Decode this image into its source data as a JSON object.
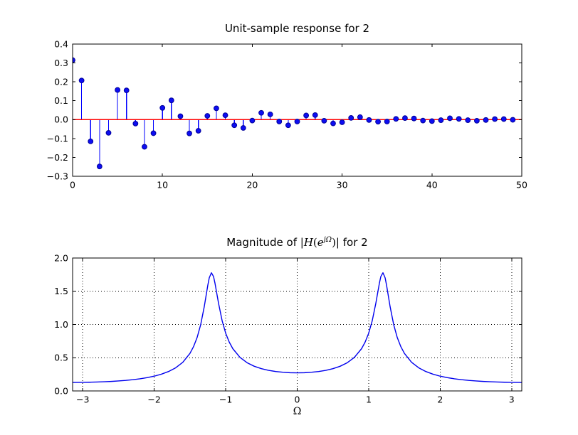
{
  "figure": {
    "background": "#ffffff",
    "text_color": "#000000",
    "axis_color": "#000000"
  },
  "chart_data": [
    {
      "id": "unit-sample-response",
      "type": "stem",
      "title": "Unit-sample response for 2",
      "xlabel": "",
      "ylabel": "",
      "xlim": [
        0,
        50
      ],
      "ylim": [
        -0.3,
        0.4
      ],
      "grid": false,
      "x_tick_values": [
        0,
        10,
        20,
        30,
        40,
        50
      ],
      "x_tick_labels": [
        "0",
        "10",
        "20",
        "30",
        "40",
        "50"
      ],
      "y_tick_values": [
        0.4,
        0.3,
        0.2,
        0.1,
        0.0,
        -0.1,
        -0.2,
        -0.3
      ],
      "y_tick_labels": [
        "0.4",
        "0.3",
        "0.2",
        "0.1",
        "0.0",
        "−0.1",
        "−0.2",
        "−0.3"
      ],
      "baseline_y": 0,
      "baseline_color": "#ff0000",
      "stem_color": "#0000ff",
      "marker_face": "#0d0df2",
      "marker_edge": "#000099",
      "x_is_index": true,
      "values": [
        0.315,
        0.207,
        -0.115,
        -0.248,
        -0.07,
        0.157,
        0.155,
        -0.021,
        -0.144,
        -0.072,
        0.062,
        0.102,
        0.018,
        -0.073,
        -0.059,
        0.02,
        0.06,
        0.023,
        -0.03,
        -0.044,
        -0.005,
        0.036,
        0.028,
        -0.01,
        -0.03,
        -0.01,
        0.022,
        0.024,
        -0.006,
        -0.02,
        -0.014,
        0.009,
        0.013,
        -0.002,
        -0.011,
        -0.01,
        0.004,
        0.008,
        0.006,
        -0.005,
        -0.008,
        -0.003,
        0.007,
        0.004,
        -0.003,
        -0.006,
        -0.002,
        0.003,
        0.003,
        -0.001
      ]
    },
    {
      "id": "magnitude-response",
      "type": "line",
      "title": "Magnitude of |H(e^jΩ)| for 2",
      "title_parts": [
        {
          "text": "Magnitude of ",
          "style": "sans"
        },
        {
          "text": "|",
          "style": "serif"
        },
        {
          "text": "H",
          "style": "serif-it"
        },
        {
          "text": "(",
          "style": "serif"
        },
        {
          "text": "e",
          "style": "serif-it"
        },
        {
          "text": "jΩ",
          "style": "sup"
        },
        {
          "text": ")|",
          "style": "serif"
        },
        {
          "text": " for 2",
          "style": "sans"
        }
      ],
      "xlabel": "Ω",
      "ylabel": "",
      "xlim": [
        -3.14159,
        3.14159
      ],
      "ylim": [
        0,
        2
      ],
      "grid": true,
      "grid_style": "dotted",
      "grid_color": "#000000",
      "x_tick_values": [
        -3,
        -2,
        -1,
        0,
        1,
        2,
        3
      ],
      "x_tick_labels": [
        "−3",
        "−2",
        "−1",
        "0",
        "1",
        "2",
        "3"
      ],
      "y_tick_values": [
        2.0,
        1.5,
        1.0,
        0.5,
        0.0
      ],
      "y_tick_labels": [
        "2.0",
        "1.5",
        "1.0",
        "0.5",
        "0.0"
      ],
      "line_color": "#0000ee",
      "peak_value": 1.78,
      "peak_locations": [
        -1.2,
        1.2
      ],
      "x": [
        -3.142,
        -3.0,
        -2.9,
        -2.8,
        -2.7,
        -2.6,
        -2.5,
        -2.4,
        -2.3,
        -2.2,
        -2.1,
        -2.0,
        -1.9,
        -1.8,
        -1.7,
        -1.6,
        -1.5,
        -1.45,
        -1.4,
        -1.35,
        -1.3,
        -1.25,
        -1.23,
        -1.2,
        -1.17,
        -1.15,
        -1.1,
        -1.05,
        -1.0,
        -0.95,
        -0.9,
        -0.8,
        -0.7,
        -0.6,
        -0.5,
        -0.4,
        -0.3,
        -0.2,
        -0.1,
        0.0,
        0.1,
        0.2,
        0.3,
        0.4,
        0.5,
        0.6,
        0.7,
        0.8,
        0.9,
        0.95,
        1.0,
        1.05,
        1.1,
        1.15,
        1.17,
        1.2,
        1.23,
        1.25,
        1.3,
        1.35,
        1.4,
        1.45,
        1.5,
        1.6,
        1.7,
        1.8,
        1.9,
        2.0,
        2.1,
        2.2,
        2.3,
        2.4,
        2.5,
        2.6,
        2.7,
        2.8,
        2.9,
        3.0,
        3.142
      ],
      "y": [
        0.128,
        0.129,
        0.131,
        0.134,
        0.138,
        0.143,
        0.15,
        0.158,
        0.169,
        0.183,
        0.2,
        0.222,
        0.252,
        0.292,
        0.348,
        0.431,
        0.565,
        0.666,
        0.803,
        0.997,
        1.268,
        1.592,
        1.702,
        1.778,
        1.721,
        1.621,
        1.318,
        1.057,
        0.868,
        0.734,
        0.635,
        0.505,
        0.424,
        0.371,
        0.335,
        0.31,
        0.292,
        0.281,
        0.274,
        0.272,
        0.274,
        0.281,
        0.292,
        0.31,
        0.335,
        0.371,
        0.424,
        0.505,
        0.635,
        0.734,
        0.868,
        1.057,
        1.318,
        1.621,
        1.721,
        1.778,
        1.702,
        1.592,
        1.268,
        0.997,
        0.803,
        0.666,
        0.565,
        0.431,
        0.348,
        0.292,
        0.252,
        0.222,
        0.2,
        0.183,
        0.169,
        0.158,
        0.15,
        0.143,
        0.138,
        0.134,
        0.131,
        0.129,
        0.128
      ]
    }
  ]
}
